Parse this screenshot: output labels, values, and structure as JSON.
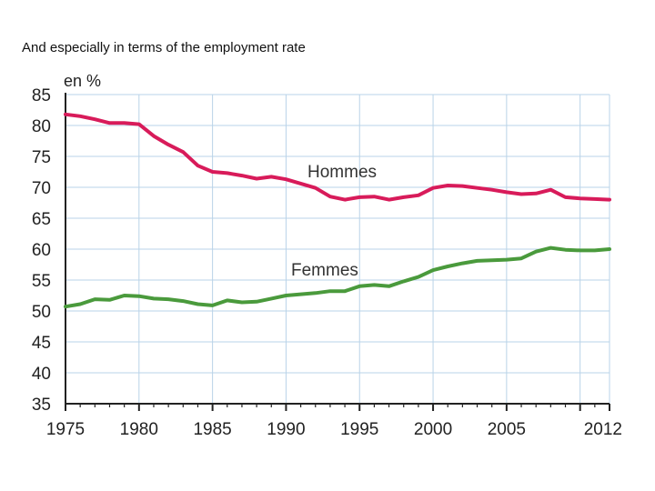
{
  "slide": {
    "title": "And especially in terms of the employment rate"
  },
  "chart_data": {
    "type": "line",
    "title": "",
    "xlabel": "",
    "ylabel": "en %",
    "xlim": [
      1975,
      2012
    ],
    "ylim": [
      35,
      85
    ],
    "x_ticks": [
      1975,
      1980,
      1985,
      1990,
      1995,
      2000,
      2005,
      2012
    ],
    "x_tick_labels": [
      "1975",
      "1980",
      "1985",
      "1990",
      "1995",
      "2000",
      "2005",
      "2012"
    ],
    "y_ticks": [
      35,
      40,
      45,
      50,
      55,
      60,
      65,
      70,
      75,
      80,
      85
    ],
    "y_tick_labels": [
      "35",
      "40",
      "45",
      "50",
      "55",
      "60",
      "65",
      "70",
      "75",
      "80",
      "85"
    ],
    "grid": true,
    "x": [
      1975,
      1976,
      1977,
      1978,
      1979,
      1980,
      1981,
      1982,
      1983,
      1984,
      1985,
      1986,
      1987,
      1988,
      1989,
      1990,
      1991,
      1992,
      1993,
      1994,
      1995,
      1996,
      1997,
      1998,
      1999,
      2000,
      2001,
      2002,
      2003,
      2004,
      2005,
      2006,
      2007,
      2008,
      2009,
      2010,
      2011,
      2012
    ],
    "series": [
      {
        "name": "Hommes",
        "color": "#d81b5a",
        "values": [
          81.8,
          81.5,
          81.0,
          80.4,
          80.4,
          80.2,
          78.3,
          76.9,
          75.7,
          73.5,
          72.5,
          72.3,
          71.9,
          71.4,
          71.7,
          71.3,
          70.6,
          69.9,
          68.5,
          68.0,
          68.4,
          68.5,
          68.0,
          68.4,
          68.7,
          69.9,
          70.3,
          70.2,
          69.9,
          69.6,
          69.2,
          68.9,
          69.0,
          69.6,
          68.4,
          68.2,
          68.1,
          68.0
        ]
      },
      {
        "name": "Femmes",
        "color": "#4a9a3c",
        "values": [
          50.7,
          51.1,
          51.9,
          51.8,
          52.5,
          52.4,
          52.0,
          51.9,
          51.6,
          51.1,
          50.9,
          51.7,
          51.4,
          51.5,
          52.0,
          52.5,
          52.7,
          52.9,
          53.2,
          53.2,
          54.0,
          54.2,
          54.0,
          54.8,
          55.5,
          56.6,
          57.2,
          57.7,
          58.1,
          58.2,
          58.3,
          58.5,
          59.6,
          60.2,
          59.9,
          59.8,
          59.8,
          60.0
        ]
      }
    ],
    "annotations": [
      {
        "text": "Hommes",
        "series": "Hommes"
      },
      {
        "text": "Femmes",
        "series": "Femmes"
      }
    ]
  }
}
